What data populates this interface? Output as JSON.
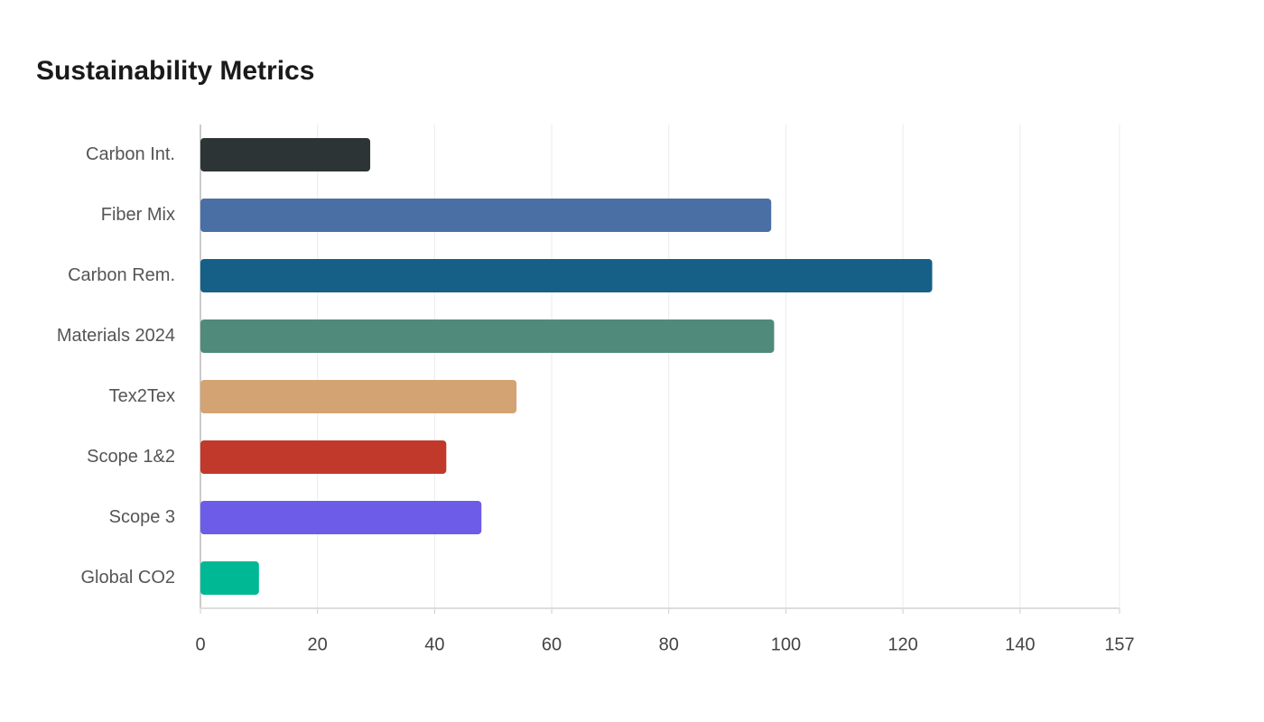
{
  "chart_data": {
    "type": "hbar",
    "title": "Sustainability Metrics",
    "categories": [
      "Carbon Int.",
      "Fiber Mix",
      "Carbon Rem.",
      "Materials 2024",
      "Tex2Tex",
      "Scope 1&2",
      "Scope 3",
      "Global CO2"
    ],
    "values": [
      29,
      97.5,
      125,
      98,
      54,
      42,
      48,
      10
    ],
    "colors": [
      "#2d3436",
      "#4a6fa5",
      "#166088",
      "#4f8a7b",
      "#d4a373",
      "#c0392b",
      "#6c5ce7",
      "#00b894"
    ],
    "xlim": [
      0,
      157
    ],
    "xticks": [
      0,
      20,
      40,
      60,
      80,
      100,
      120,
      140,
      157
    ],
    "grid": true
  }
}
